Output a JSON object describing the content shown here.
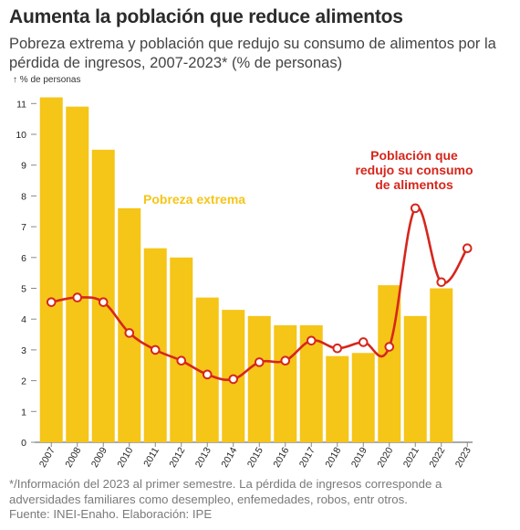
{
  "title": "Aumenta la población que reduce alimentos",
  "subtitle": "Pobreza extrema y población que redujo su consumo de alimentos por la pérdida de ingresos, 2007-2023* (% de personas)",
  "unit_label": "↑ % de personas",
  "footer": {
    "line1": "*/Información del 2023 al primer semestre. La pérdida de ingresos corresponde a",
    "line2": "adversidades familiares como desempleo, enfemedades, robos, entr otros.",
    "line3": "Fuente: INEI-Enaho. Elaboración: IPE"
  },
  "chart_data": {
    "type": "bar+line",
    "categories": [
      "2007",
      "2008",
      "2009",
      "2010",
      "2011",
      "2012",
      "2013",
      "2014",
      "2015",
      "2016",
      "2017",
      "2018",
      "2019",
      "2020",
      "2021",
      "2022",
      "2023"
    ],
    "ylim": [
      0,
      11.3
    ],
    "yticks": [
      0,
      1,
      2,
      3,
      4,
      5,
      6,
      7,
      8,
      9,
      10,
      11
    ],
    "series": [
      {
        "name": "Pobreza extrema",
        "type": "bar",
        "color": "#f5c518",
        "values": [
          11.2,
          10.9,
          9.5,
          7.6,
          6.3,
          6.0,
          4.7,
          4.3,
          4.1,
          3.8,
          3.8,
          2.8,
          2.9,
          5.1,
          4.1,
          5.0,
          null
        ]
      },
      {
        "name": "Población que redujo su consumo de alimentos",
        "label_lines": [
          "Población que",
          "redujo su consumo",
          "de alimentos"
        ],
        "type": "line",
        "color": "#d6261c",
        "values": [
          4.55,
          4.7,
          4.55,
          3.55,
          3.0,
          2.65,
          2.2,
          2.05,
          2.6,
          2.65,
          3.3,
          3.05,
          3.25,
          3.1,
          7.6,
          5.2,
          6.3
        ]
      }
    ]
  }
}
